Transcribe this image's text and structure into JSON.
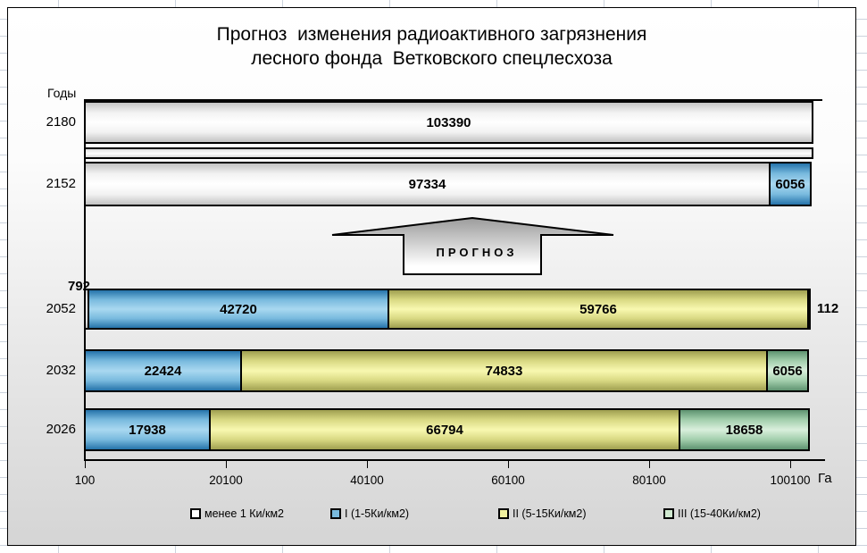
{
  "title": {
    "line1": "Прогноз  изменения радиоактивного загрязнения",
    "line2": "лесного фонда  Ветковского спецлесхоза"
  },
  "y_axis_label": "Годы",
  "x_axis_unit": "Га",
  "annotation": {
    "arrow_label": "ПРОГНОЗ"
  },
  "legend": [
    {
      "key": "lt1",
      "label": "менее 1 Ки/км2",
      "color": "#ffffff"
    },
    {
      "key": "i",
      "label": "I (1-5Ки/км2)",
      "color": "#79bade"
    },
    {
      "key": "ii",
      "label": "II (5-15Ки/км2)",
      "color": "#f0f09e"
    },
    {
      "key": "iii",
      "label": "III (15-40Ки/км2)",
      "color": "#cfe8cf"
    }
  ],
  "chart_data": {
    "type": "bar",
    "orientation": "horizontal-stacked",
    "title": "Прогноз изменения радиоактивного загрязнения лесного фонда Ветковского спецлесхоза",
    "xlabel": "Га",
    "ylabel": "Годы",
    "x_ticks": [
      100,
      20100,
      40100,
      60100,
      80100,
      100100
    ],
    "xlim": [
      100,
      103390
    ],
    "grid": false,
    "legend_position": "bottom",
    "series_names": [
      "менее 1 Ки/км2",
      "I (1-5Ки/км2)",
      "II (5-15Ки/км2)",
      "III (15-40Ки/км2)"
    ],
    "categories_top_to_bottom": [
      "2180",
      "2152",
      "2052",
      "2032",
      "2026"
    ],
    "rows": [
      {
        "year": "2180",
        "segments": [
          {
            "series": "lt1",
            "value": 103390,
            "label": "103390",
            "label_pos": "inside"
          }
        ]
      },
      {
        "year": "2152",
        "segments": [
          {
            "series": "lt1",
            "value": 97334,
            "label": "97334",
            "label_pos": "inside"
          },
          {
            "series": "i",
            "value": 6056,
            "label": "6056",
            "label_pos": "inside"
          }
        ]
      },
      {
        "year": "2052",
        "segments": [
          {
            "series": "lt1",
            "value": 792,
            "label": "792",
            "label_pos": "outside-top-left"
          },
          {
            "series": "i",
            "value": 42720,
            "label": "42720",
            "label_pos": "inside"
          },
          {
            "series": "ii",
            "value": 59766,
            "label": "59766",
            "label_pos": "inside"
          },
          {
            "series": "iii",
            "value": 112,
            "label": "112",
            "label_pos": "outside-right"
          }
        ]
      },
      {
        "year": "2032",
        "segments": [
          {
            "series": "i",
            "value": 22424,
            "label": "22424",
            "label_pos": "inside"
          },
          {
            "series": "ii",
            "value": 74833,
            "label": "74833",
            "label_pos": "inside"
          },
          {
            "series": "iii",
            "value": 6056,
            "label": "6056",
            "label_pos": "inside"
          }
        ]
      },
      {
        "year": "2026",
        "segments": [
          {
            "series": "i",
            "value": 17938,
            "label": "17938",
            "label_pos": "inside"
          },
          {
            "series": "ii",
            "value": 66794,
            "label": "66794",
            "label_pos": "inside"
          },
          {
            "series": "iii",
            "value": 18658,
            "label": "18658",
            "label_pos": "inside"
          }
        ]
      }
    ],
    "annotations": [
      "thin white separator bar between 2180 and 2152 rows",
      "up-pointing block arrow labelled ПРОГНОЗ between 2152 and 2052"
    ]
  }
}
